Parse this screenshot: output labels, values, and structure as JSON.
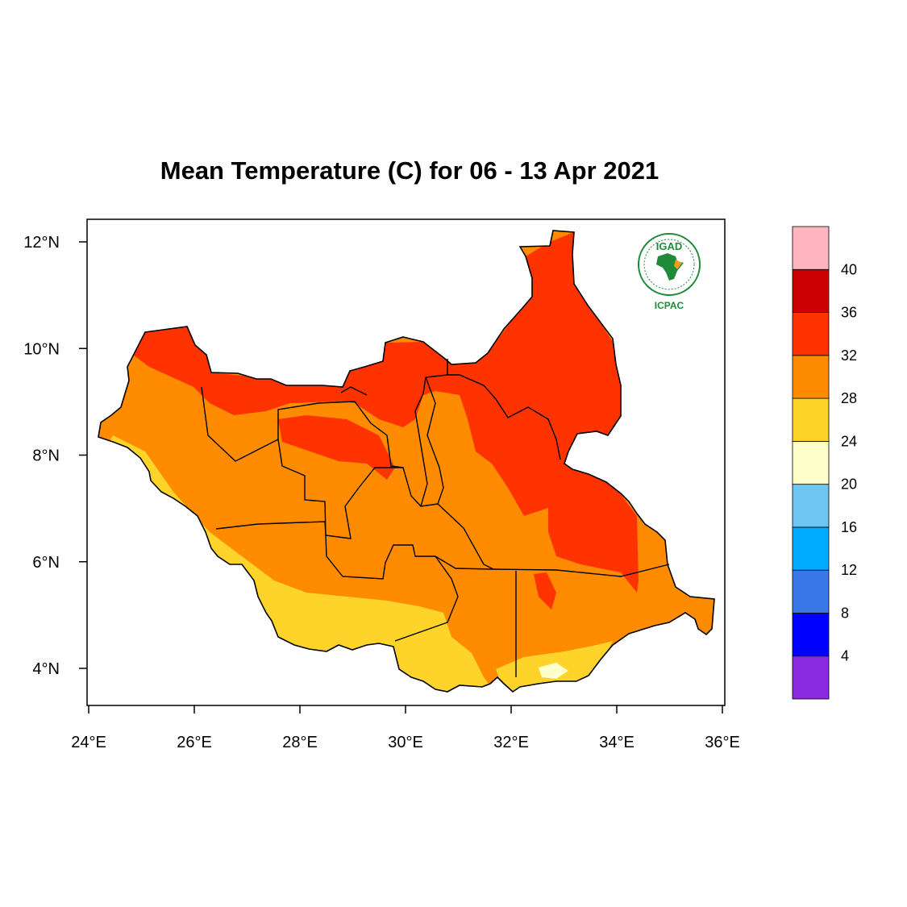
{
  "title": "Mean Temperature (C) for 06 - 13 Apr 2021",
  "map": {
    "region": "South Sudan",
    "lon_range": [
      24,
      36
    ],
    "lat_range": [
      3.4,
      12.45
    ],
    "x_ticks": [
      {
        "value": 24,
        "label": "24°E"
      },
      {
        "value": 26,
        "label": "26°E"
      },
      {
        "value": 28,
        "label": "28°E"
      },
      {
        "value": 30,
        "label": "30°E"
      },
      {
        "value": 32,
        "label": "32°E"
      },
      {
        "value": 34,
        "label": "34°E"
      },
      {
        "value": 36,
        "label": "36°E"
      }
    ],
    "y_ticks": [
      {
        "value": 12,
        "label": "12°N"
      },
      {
        "value": 10,
        "label": "10°N"
      },
      {
        "value": 8,
        "label": "8°N"
      },
      {
        "value": 6,
        "label": "6°N"
      },
      {
        "value": 4,
        "label": "4°N"
      }
    ]
  },
  "colorbar": {
    "bins": [
      {
        "color": "#8a2be2",
        "label": "4"
      },
      {
        "color": "#0000ff",
        "label": "8"
      },
      {
        "color": "#3a78e8",
        "label": "12"
      },
      {
        "color": "#00aaff",
        "label": "16"
      },
      {
        "color": "#6ec6f0",
        "label": "20"
      },
      {
        "color": "#ffffcc",
        "label": "24"
      },
      {
        "color": "#ffd42a",
        "label": "28"
      },
      {
        "color": "#ff8c00",
        "label": "32"
      },
      {
        "color": "#ff3300",
        "label": "36"
      },
      {
        "color": "#cc0000",
        "label": "40"
      },
      {
        "color": "#ffb6c1",
        "label": ""
      }
    ]
  },
  "logo": {
    "top_text": "IGAD",
    "bottom_text": "ICPAC"
  },
  "colors": {
    "hot": "#ff3300",
    "warm": "#ff8c00",
    "mild": "#ffd42a",
    "cool": "#ffffcc"
  }
}
